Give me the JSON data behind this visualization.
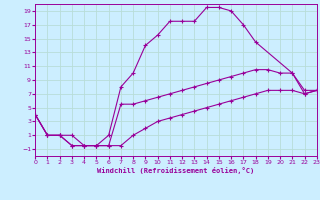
{
  "xlabel": "Windchill (Refroidissement éolien,°C)",
  "bg_color": "#cceeff",
  "grid_color": "#b8ddd8",
  "line_color": "#990099",
  "xmin": 0,
  "xmax": 23,
  "ymin": -2,
  "ymax": 20,
  "yticks": [
    -1,
    1,
    3,
    5,
    7,
    9,
    11,
    13,
    15,
    17,
    19
  ],
  "xticks": [
    0,
    1,
    2,
    3,
    4,
    5,
    6,
    7,
    8,
    9,
    10,
    11,
    12,
    13,
    14,
    15,
    16,
    17,
    18,
    19,
    20,
    21,
    22,
    23
  ],
  "series": [
    {
      "x": [
        0,
        1,
        2,
        3,
        4,
        5,
        6,
        7,
        8,
        9,
        10,
        11,
        12,
        13,
        14,
        15,
        16,
        17,
        18,
        21,
        22,
        23
      ],
      "y": [
        4,
        1,
        1,
        1,
        -0.5,
        -0.5,
        1,
        8,
        10,
        14,
        15.5,
        17.5,
        17.5,
        17.5,
        19.5,
        19.5,
        19,
        17,
        14.5,
        10,
        7,
        7.5
      ]
    },
    {
      "x": [
        0,
        1,
        2,
        3,
        4,
        5,
        6,
        7,
        8,
        9,
        10,
        11,
        12,
        13,
        14,
        15,
        16,
        17,
        18,
        19,
        20,
        21,
        22,
        23
      ],
      "y": [
        4,
        1,
        1,
        -0.5,
        -0.5,
        -0.5,
        -0.5,
        5.5,
        5.5,
        6,
        6.5,
        7,
        7.5,
        8,
        8.5,
        9,
        9.5,
        10,
        10.5,
        10.5,
        10,
        10,
        7.5,
        7.5
      ]
    },
    {
      "x": [
        0,
        1,
        2,
        3,
        4,
        5,
        6,
        7,
        8,
        9,
        10,
        11,
        12,
        13,
        14,
        15,
        16,
        17,
        18,
        19,
        20,
        21,
        22,
        23
      ],
      "y": [
        4,
        1,
        1,
        -0.5,
        -0.5,
        -0.5,
        -0.5,
        -0.5,
        1,
        2,
        3,
        3.5,
        4,
        4.5,
        5,
        5.5,
        6,
        6.5,
        7,
        7.5,
        7.5,
        7.5,
        7,
        7.5
      ]
    }
  ]
}
